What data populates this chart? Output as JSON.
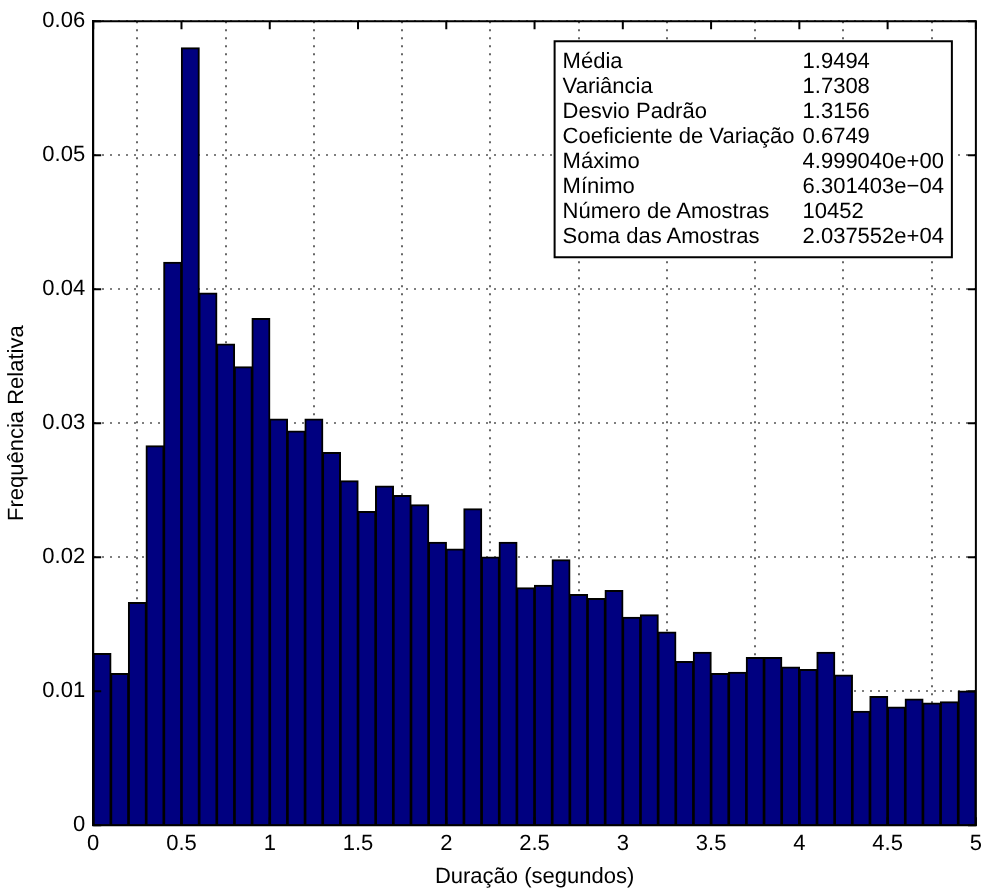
{
  "chart_data": {
    "type": "histogram",
    "xlabel": "Duração (segundos)",
    "ylabel": "Frequência Relativa",
    "bins": [
      0,
      0.1,
      0.2,
      0.3,
      0.4,
      0.5,
      0.6,
      0.7,
      0.8,
      0.9,
      1,
      1.1,
      1.2,
      1.3,
      1.4,
      1.5,
      1.6,
      1.7,
      1.8,
      1.9,
      2,
      2.1,
      2.2,
      2.3,
      2.4,
      2.5,
      2.6,
      2.7,
      2.8,
      2.9,
      3,
      3.1,
      3.2,
      3.3,
      3.4,
      3.5,
      3.6,
      3.7,
      3.8,
      3.9,
      4,
      4.1,
      4.2,
      4.3,
      4.4,
      4.5,
      4.6,
      4.7,
      4.8,
      4.9,
      5
    ],
    "values": [
      0.0128,
      0.0113,
      0.0166,
      0.0283,
      0.042,
      0.058,
      0.0397,
      0.0359,
      0.0342,
      0.0378,
      0.0303,
      0.0294,
      0.0303,
      0.0278,
      0.0257,
      0.0234,
      0.0253,
      0.0246,
      0.0239,
      0.0211,
      0.0206,
      0.0236,
      0.02,
      0.0211,
      0.0177,
      0.0179,
      0.0198,
      0.0172,
      0.0169,
      0.0175,
      0.0155,
      0.0157,
      0.0144,
      0.0122,
      0.0129,
      0.0113,
      0.0114,
      0.0125,
      0.0125,
      0.0118,
      0.0116,
      0.0129,
      0.0112,
      0.0085,
      0.0096,
      0.0088,
      0.0094,
      0.0091,
      0.0092,
      0.01
    ],
    "color": "#000080",
    "xlim": [
      0,
      5
    ],
    "xticks": [
      0,
      0.5,
      1,
      1.5,
      2,
      2.5,
      3,
      3.5,
      4,
      4.5,
      5
    ],
    "ylim": [
      0,
      0.06
    ],
    "yticks": [
      0,
      0.01,
      0.02,
      0.03,
      0.04,
      0.05,
      0.06
    ],
    "grid": true,
    "line_style": "dotted",
    "annotations": [
      "Média",
      "1.9494",
      "Variância",
      "1.7308",
      "Desvio Padrão",
      "1.3156",
      "Coeficiente de Variação",
      "0.6749",
      "Máximo",
      "4.999040e+00",
      "Mínimo",
      "6.301403e−04",
      "Número de Amostras",
      "10452",
      "Soma das Amostras",
      "2.037552e+04"
    ]
  }
}
